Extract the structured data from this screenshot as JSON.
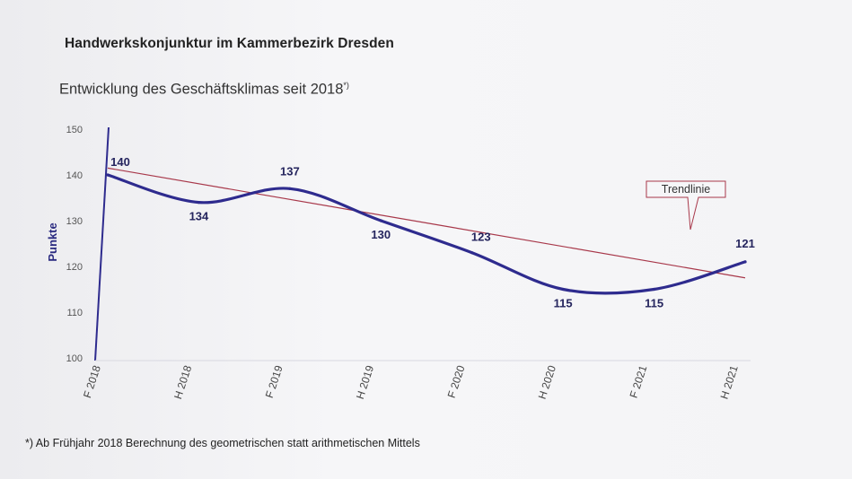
{
  "header": {
    "title": "Handwerkskonjunktur im Kammerbezirk Dresden",
    "subtitle": "Entwicklung des Geschäftsklimas seit 2018",
    "subtitle_mark": "*)"
  },
  "footnote": "*) Ab Frühjahr 2018 Berechnung des geometrischen statt arithmetischen Mittels",
  "colors": {
    "series": "#2e2b8e",
    "trend": "#a8384a",
    "callout_border": "#a8384a"
  },
  "chart_data": {
    "type": "line",
    "title": "Entwicklung des Geschäftsklimas seit 2018",
    "xlabel": "",
    "ylabel": "Punkte",
    "categories": [
      "F 2018",
      "H 2018",
      "F 2019",
      "H 2019",
      "F 2020",
      "H 2020",
      "F 2021",
      "H 2021"
    ],
    "ylim": [
      100,
      150
    ],
    "yticks": [
      100,
      110,
      120,
      130,
      140,
      150
    ],
    "series": [
      {
        "name": "Geschäftsklima",
        "values": [
          140,
          134,
          137,
          130,
          123,
          115,
          115,
          121
        ],
        "labels": [
          "140",
          "134",
          "137",
          "130",
          "123",
          "115",
          "115",
          "121"
        ]
      },
      {
        "name": "Trendlinie",
        "start": 141.5,
        "end": 117.5
      }
    ],
    "annotations": [
      {
        "text": "Trendlinie",
        "target_series": "Trendlinie"
      }
    ],
    "grid": false
  }
}
